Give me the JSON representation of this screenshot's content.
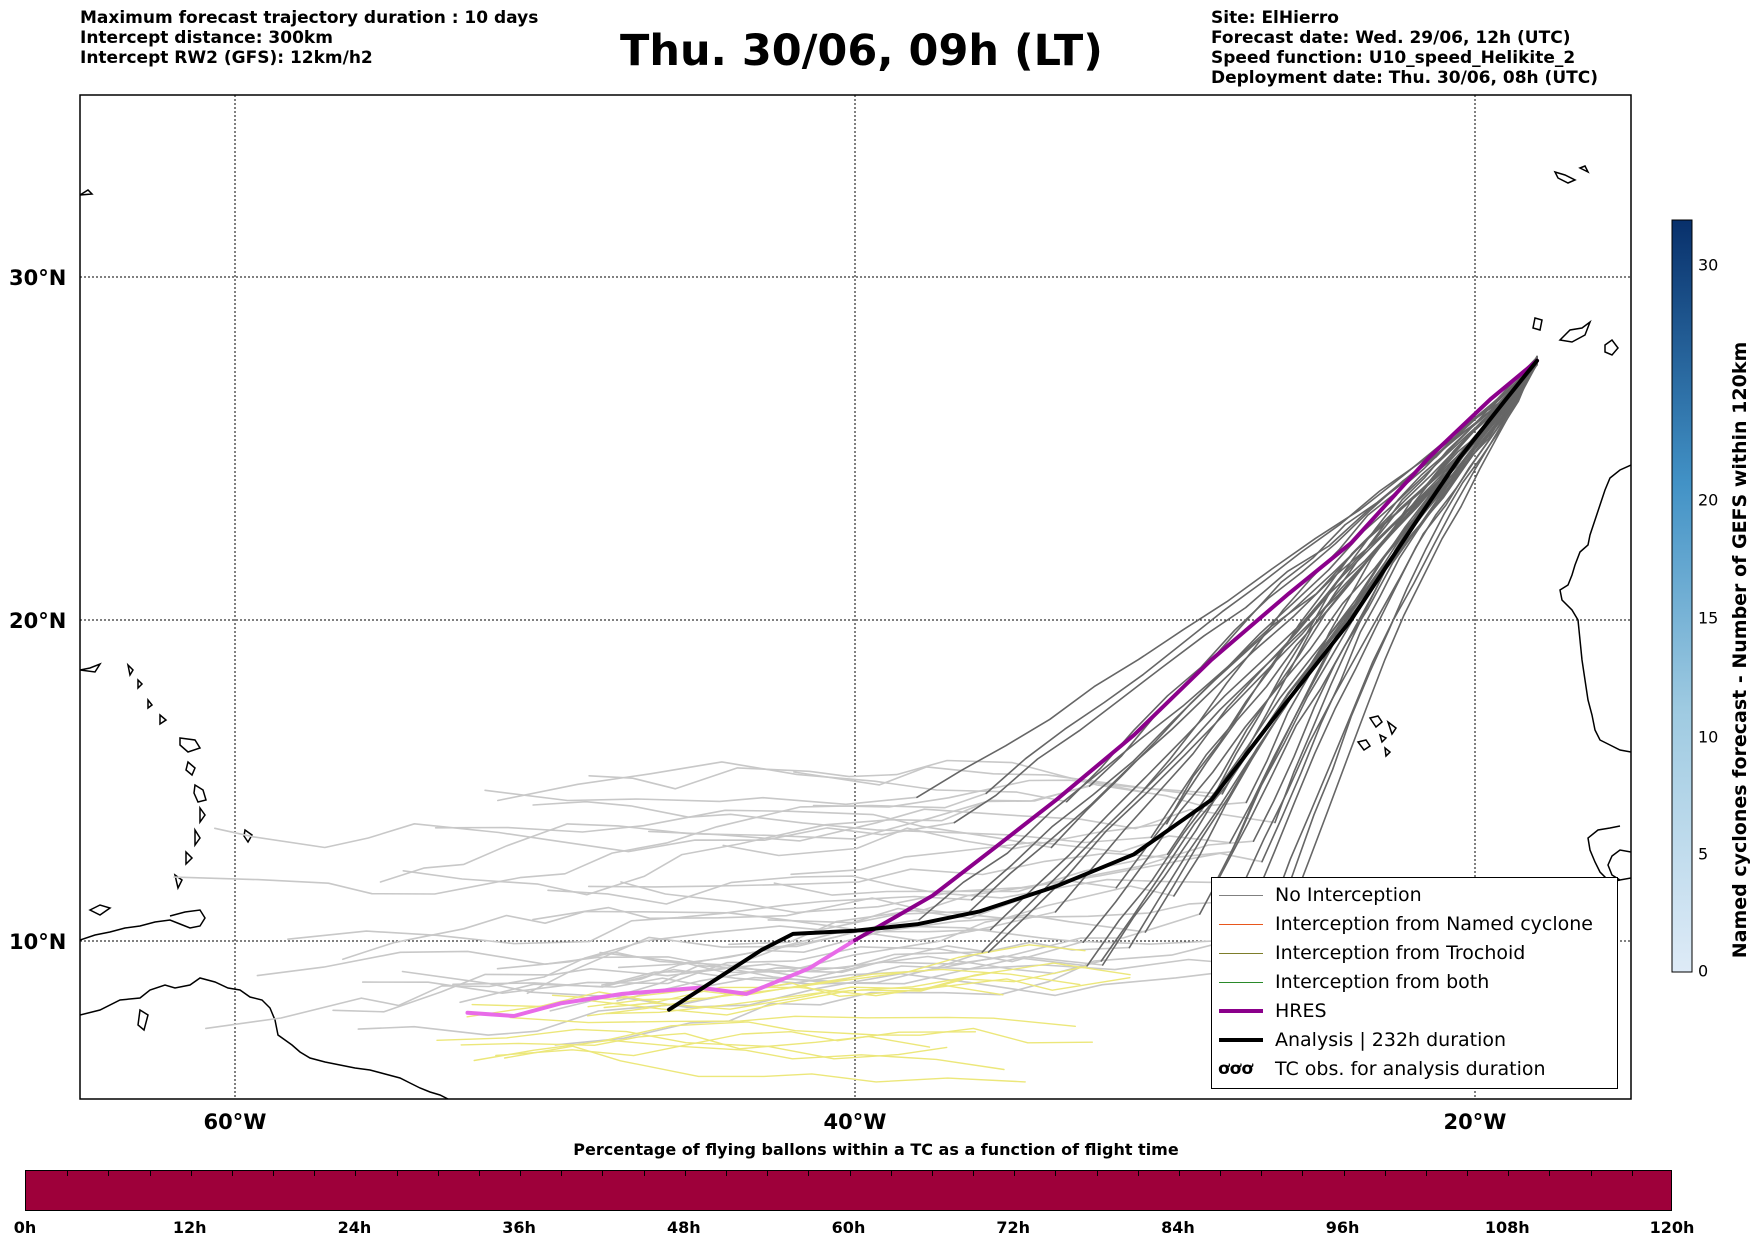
{
  "header": {
    "left": [
      "Maximum forecast trajectory duration : 10 days",
      "Intercept distance: 300km",
      "Intercept RW2 (GFS):  12km/h2"
    ],
    "title": "Thu. 30/06, 09h (LT)",
    "right": [
      "Site: ElHierro",
      "Forecast date: Wed. 29/06, 12h (UTC)",
      "Speed function: U10_speed_Helikite_2",
      "Deployment date: Thu. 30/06, 08h (UTC)"
    ]
  },
  "map": {
    "lon_range": [
      -65,
      15
    ],
    "lat_range": [
      5.3,
      34.7
    ],
    "lat_labels": [
      {
        "lat": 30,
        "text": "30°N"
      },
      {
        "lat": 20,
        "text": "20°N"
      },
      {
        "lat": 10,
        "text": "10°N"
      }
    ],
    "lon_labels": [
      {
        "lon": -60,
        "text": "60°W"
      },
      {
        "lon": -40,
        "text": "40°W"
      },
      {
        "lon": -20,
        "text": "20°W"
      }
    ],
    "site": {
      "name": "ElHierro",
      "lon": -18.0,
      "lat": 27.7
    }
  },
  "legend": {
    "items": [
      {
        "label": "No Interception",
        "color": "#808080",
        "style": "thin"
      },
      {
        "label": "Interception from Named cyclone",
        "color": "#e8561c",
        "style": "thin"
      },
      {
        "label": "Interception from Trochoid",
        "color": "#7d7d2a",
        "style": "thin"
      },
      {
        "label": "Interception from both",
        "color": "#2a8a2a",
        "style": "thin"
      },
      {
        "label": "HRES",
        "color": "#8b008b",
        "style": "thick"
      },
      {
        "label": "Analysis | 232h duration",
        "color": "#000000",
        "style": "thick"
      },
      {
        "label": "TC obs. for analysis duration",
        "color": "#000000",
        "style": "symbol",
        "symbol": "ơơơ"
      }
    ]
  },
  "colorbar": {
    "title": "Named cyclones forecast - Number of GEFS within 120km",
    "ticks": [
      "0",
      "5",
      "10",
      "15",
      "20",
      "30"
    ],
    "top_color": "#08306b",
    "bottom_color": "#deebf7"
  },
  "bottom_bar": {
    "title": "Percentage of flying ballons within a TC as a function of flight time",
    "ticks": [
      "0h",
      "12h",
      "24h",
      "36h",
      "48h",
      "60h",
      "72h",
      "84h",
      "96h",
      "108h",
      "120h"
    ],
    "fill_color": "#9e003a",
    "fill_fraction": 1.0
  },
  "chart_data": {
    "type": "line",
    "title": "Thu. 30/06, 09h (LT)",
    "xlabel": "",
    "ylabel": "",
    "series": [
      {
        "name": "HRES",
        "color": "#8b008b",
        "x": [
          -18.0,
          -19.5,
          -21.5,
          -24.0,
          -26.0,
          -28.5,
          -31.0,
          -33.5,
          -35.5,
          -37.5,
          -40.0,
          -41.5,
          -43.5,
          -45.0,
          -47.5,
          -49.5,
          -51.0,
          -52.5
        ],
        "y": [
          27.6,
          26.5,
          24.8,
          22.3,
          20.8,
          18.8,
          16.5,
          14.5,
          13.0,
          11.5,
          10.1,
          9.2,
          8.4,
          8.6,
          8.4,
          8.1,
          7.7,
          7.8
        ]
      },
      {
        "name": "Analysis | 232h duration",
        "color": "#000000",
        "x": [
          -18.0,
          -19.0,
          -20.5,
          -22.0,
          -24.0,
          -26.5,
          -28.5,
          -31.0,
          -33.5,
          -36.0,
          -38.0,
          -40.0,
          -42.0,
          -43.0,
          -46.0
        ],
        "y": [
          27.6,
          26.5,
          24.8,
          22.8,
          20.0,
          17.0,
          14.5,
          12.8,
          11.8,
          11.0,
          10.6,
          10.4,
          10.3,
          9.8,
          7.9
        ]
      }
    ]
  }
}
